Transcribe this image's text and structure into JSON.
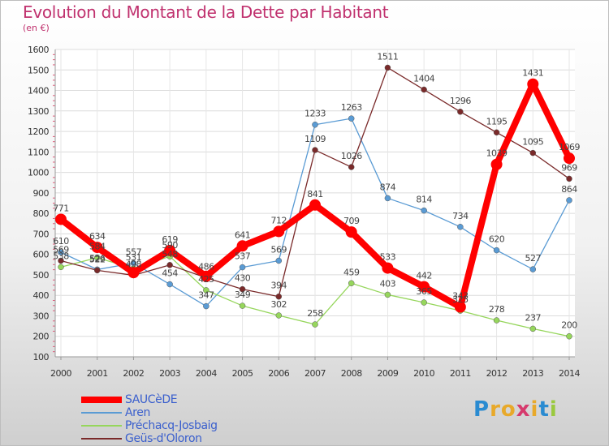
{
  "chart_data": {
    "type": "line",
    "title": "Evolution du Montant de la Dette par Habitant",
    "subtitle": "(en €)",
    "x": [
      "2000",
      "2001",
      "2002",
      "2003",
      "2004",
      "2005",
      "2006",
      "2007",
      "2008",
      "2009",
      "2010",
      "2011",
      "2012",
      "2013",
      "2014"
    ],
    "ylim": [
      100,
      1600
    ],
    "yticks": [
      100,
      200,
      300,
      400,
      500,
      600,
      700,
      800,
      900,
      1000,
      1100,
      1200,
      1300,
      1400,
      1500,
      1600
    ],
    "grid": true,
    "legend": "bottom-left",
    "series": [
      {
        "name": "SAUCèDE",
        "color": "#ff0000",
        "width": 8,
        "marker": 7,
        "values": [
          771,
          634,
          511,
          619,
          493,
          641,
          712,
          841,
          709,
          533,
          442,
          343,
          1039,
          1431,
          1069
        ]
      },
      {
        "name": "Aren",
        "color": "#5a9bd4",
        "width": 1.3,
        "marker": 3.5,
        "values": [
          610,
          526,
          557,
          454,
          347,
          537,
          569,
          1233,
          1263,
          874,
          814,
          734,
          620,
          527,
          864
        ]
      },
      {
        "name": "Préchacq-Josbaig",
        "color": "#96d65c",
        "width": 1.3,
        "marker": 3.5,
        "values": [
          538,
          584,
          531,
          590,
          425,
          349,
          302,
          258,
          459,
          403,
          365,
          325,
          278,
          237,
          200
        ]
      },
      {
        "name": "Geüs-d'Oloron",
        "color": "#7a2a2a",
        "width": 1.3,
        "marker": 3.5,
        "values": [
          569,
          522,
          498,
          548,
          486,
          430,
          394,
          1109,
          1026,
          1511,
          1404,
          1296,
          1195,
          1095,
          969
        ]
      }
    ],
    "data_labels": [
      {
        "series": 0,
        "values": [
          "771",
          "634",
          "",
          "619",
          "",
          "641",
          "712",
          "841",
          "709",
          "533",
          "442",
          "343",
          "1039",
          "1431",
          "1069"
        ]
      },
      {
        "series": 1,
        "values": [
          "610",
          "526",
          "557",
          "454",
          "347",
          "537",
          "569",
          "1233",
          "1263",
          "874",
          "814",
          "734",
          "620",
          "527",
          "864"
        ]
      },
      {
        "series": 2,
        "values": [
          "538",
          "584",
          "531",
          "590",
          "425",
          "349",
          "302",
          "258",
          "459",
          "403",
          "365",
          "325",
          "278",
          "237",
          "200"
        ]
      },
      {
        "series": 3,
        "values": [
          "569",
          "522",
          "498",
          "548",
          "486",
          "430",
          "394",
          "1109",
          "1026",
          "1511",
          "1404",
          "1296",
          "1195",
          "1095",
          "969"
        ]
      }
    ]
  },
  "logo": {
    "letters": [
      "P",
      "r",
      "o",
      "x",
      "i",
      "t",
      "i"
    ],
    "colors": [
      "#2a8bd1",
      "#e8a92a",
      "#e8a92a",
      "#d63a6d",
      "#e8a92a",
      "#2a8bd1",
      "#9ac93e"
    ]
  }
}
